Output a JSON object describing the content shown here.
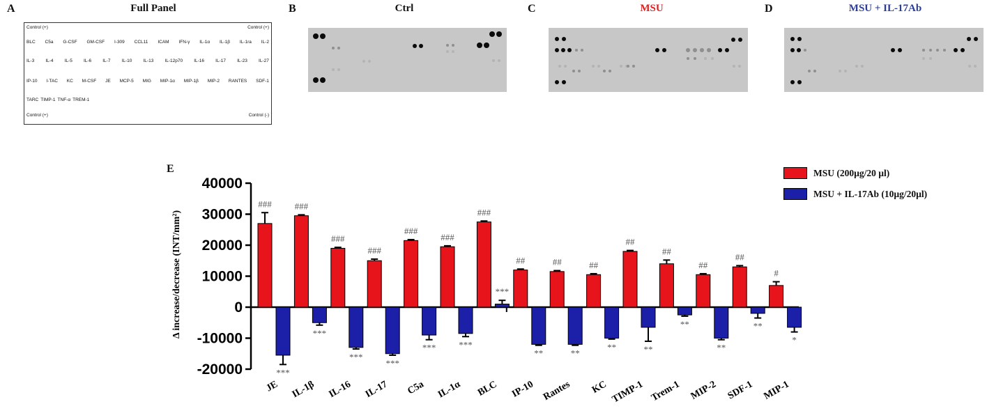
{
  "panels": [
    {
      "letter": "A",
      "title": "Full Panel",
      "color": "#111111"
    },
    {
      "letter": "B",
      "title": "Ctrl",
      "color": "#111111"
    },
    {
      "letter": "C",
      "title": "MSU",
      "color": "#e02020"
    },
    {
      "letter": "D",
      "title": "MSU + IL-17Ab",
      "color": "#2a3d9c"
    }
  ],
  "key": {
    "control_tl": "Control (+)",
    "control_tr": "Control (+)",
    "control_bl": "Control (+)",
    "control_br": "Control (-)",
    "rows": [
      [
        "BLC",
        "C5a",
        "G-CSF",
        "GM-CSF",
        "I-309",
        "CCL11",
        "ICAM",
        "IFN-γ",
        "IL-1α",
        "IL-1β",
        "IL-1ra",
        "IL-2"
      ],
      [
        "IL-3",
        "IL-4",
        "IL-5",
        "IL-6",
        "IL-7",
        "IL-10",
        "IL-13",
        "IL-12p70",
        "IL-16",
        "IL-17",
        "IL-23",
        "IL-27"
      ],
      [
        "IP-10",
        "I-TAC",
        "KC",
        "M-CSF",
        "JE",
        "MCP-5",
        "MIG",
        "MIP-1α",
        "MIP-1β",
        "MIP-2",
        "RANTES",
        "SDF-1"
      ],
      [
        "TARC",
        "TIMP-1",
        "TNF-α",
        "TREM-1"
      ]
    ]
  },
  "panel_e_letter": "E",
  "legend": [
    {
      "name": "MSU (200µg/20 µl)",
      "color": "#e8141b"
    },
    {
      "name": "MSU + IL-17Ab  (10µg/20µl)",
      "color": "#1c1fa8"
    }
  ],
  "chart_data": {
    "type": "bar",
    "ylabel": "Δ increase/decrease (INT/mm²)",
    "ylim": [
      -20000,
      40000
    ],
    "yticks": [
      -20000,
      -10000,
      0,
      10000,
      20000,
      30000,
      40000
    ],
    "categories": [
      "JE",
      "IL-1β",
      "IL-16",
      "IL-17",
      "C5a",
      "IL-1α",
      "BLC",
      "IP-10",
      "Rantes",
      "KC",
      "TIMP-1",
      "Trem-1",
      "MIP-2",
      "SDF-1",
      "MIP-1"
    ],
    "series": [
      {
        "name": "MSU (200µg/20 µl)",
        "color": "#e8141b",
        "values": [
          27000,
          29500,
          19000,
          15000,
          21500,
          19500,
          27500,
          12000,
          11500,
          10500,
          18000,
          14000,
          10500,
          13000,
          7000
        ],
        "errors": [
          3500,
          300,
          300,
          500,
          300,
          300,
          300,
          300,
          300,
          300,
          300,
          1200,
          300,
          400,
          1200
        ],
        "annotations": [
          "###",
          "###",
          "###",
          "###",
          "###",
          "###",
          "###",
          "##",
          "##",
          "##",
          "##",
          "##",
          "##",
          "##",
          "#"
        ]
      },
      {
        "name": "MSU + IL-17Ab  (10µg/20µl)",
        "color": "#1c1fa8",
        "values": [
          -15500,
          -5000,
          -13000,
          -15000,
          -9000,
          -8500,
          1000,
          -12000,
          -12000,
          -10000,
          -6500,
          -2500,
          -10000,
          -2000,
          -6500
        ],
        "errors": [
          3000,
          800,
          500,
          500,
          1500,
          1000,
          1200,
          300,
          300,
          300,
          4500,
          400,
          500,
          1500,
          1500
        ],
        "annotations": [
          "***",
          "***",
          "***",
          "***",
          "***",
          "***",
          "***",
          "**",
          "**",
          "**",
          "**",
          "**",
          "**",
          "**",
          "*"
        ]
      }
    ]
  }
}
